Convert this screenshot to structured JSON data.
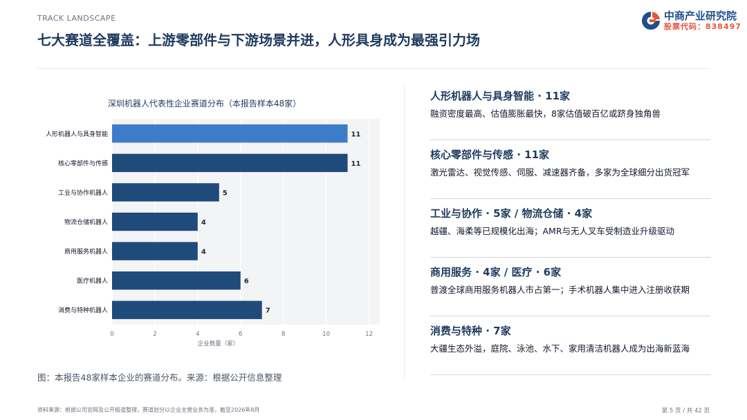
{
  "header": {
    "kicker": "TRACK LANDSCAPE",
    "title": "七大赛道全覆盖：上游零部件与下游场景并进，人形具身成为最强引力场"
  },
  "logo": {
    "name": "中商产业研究院",
    "stock_code": "股票代码：838497"
  },
  "chart_data": {
    "type": "bar",
    "orientation": "horizontal",
    "title": "深圳机器人代表性企业赛道分布（本报告样本48家）",
    "categories": [
      "人形机器人与具身智能",
      "核心零部件与传感",
      "工业与协作机器人",
      "物流仓储机器人",
      "商用服务机器人",
      "医疗机器人",
      "消费与特种机器人"
    ],
    "values": [
      11,
      11,
      5,
      4,
      4,
      6,
      7
    ],
    "xlabel": "企业数量（家）",
    "ylabel": "",
    "xlim": [
      0,
      12.5
    ],
    "xticks": [
      0,
      2,
      4,
      6,
      8,
      10,
      12
    ],
    "grid": true,
    "highlight_color": "#3d7cc9",
    "bar_color": "#1f4b7a",
    "data_labels": [
      "11",
      "11",
      "5",
      "4",
      "4",
      "6",
      "7"
    ]
  },
  "caption": "图：本报告48家样本企业的赛道分布。来源：根据公开信息整理",
  "cards": [
    {
      "title": "人形机器人与具身智能 · 11家",
      "desc": "融资密度最高、估值膨胀最快，8家估值破百亿或跻身独角兽"
    },
    {
      "title": "核心零部件与传感 · 11家",
      "desc": "激光雷达、视觉传感、伺服、减速器齐备，多家为全球细分出货冠军"
    },
    {
      "title": "工业与协作 · 5家 / 物流仓储 · 4家",
      "desc": "越疆、海柔等已规模化出海；AMR与无人叉车受制造业升级驱动"
    },
    {
      "title": "商用服务 · 4家 / 医疗 · 6家",
      "desc": "普渡全球商用服务机器人市占第一；手术机器人集中进入注册收获期"
    },
    {
      "title": "消费与特种 · 7家",
      "desc": "大疆生态外溢，庭院、泳池、水下、家用清洁机器人成为出海新蓝海"
    }
  ],
  "footer": {
    "source": "资料来源：根据公司官网及公开报道整理，赛道划分以企业主营业务为准，截至2026年8月",
    "page": "第 5 页 / 共 42 页"
  }
}
